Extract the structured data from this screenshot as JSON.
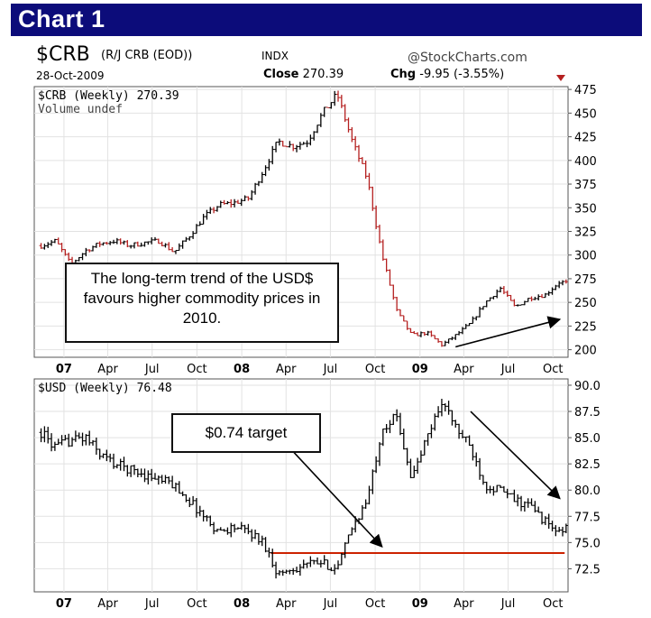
{
  "banner": {
    "title": "Chart 1",
    "color": "#0c0c7a"
  },
  "header": {
    "symbol": "$CRB",
    "description": "(R/J CRB (EOD))",
    "market": "INDX",
    "brand": "@StockCharts.com",
    "date": "28-Oct-2009",
    "close_label": "Close",
    "close_value": "270.39",
    "chg_label": "Chg",
    "chg_value": "-9.95 (-3.55%)"
  },
  "top_panel": {
    "label": "$CRB (Weekly) 270.39",
    "volume_label": "Volume undef",
    "annotation": "The long-term trend of the USD$ favours higher commodity prices in 2010."
  },
  "bottom_panel": {
    "label": "$USD (Weekly) 76.48",
    "annotation": "$0.74 target"
  },
  "x_axis_labels": [
    "07",
    "Apr",
    "Jul",
    "Oct",
    "08",
    "Apr",
    "Jul",
    "Oct",
    "09",
    "Apr",
    "Jul",
    "Oct"
  ],
  "chart_data": [
    {
      "type": "line",
      "name": "$CRB (Weekly)",
      "y_ticks": [
        200,
        225,
        250,
        275,
        300,
        325,
        350,
        375,
        400,
        425,
        450,
        475
      ],
      "ylim": [
        192,
        478
      ],
      "x_range": [
        "2006-11-01",
        "2009-11-01"
      ],
      "x": [
        "2006-11",
        "2006-12",
        "2007-01",
        "2007-02",
        "2007-03",
        "2007-04",
        "2007-05",
        "2007-06",
        "2007-07",
        "2007-08",
        "2007-09",
        "2007-10",
        "2007-11",
        "2007-12",
        "2008-01",
        "2008-02",
        "2008-03",
        "2008-04",
        "2008-05",
        "2008-06",
        "2008-07",
        "2008-08",
        "2008-09",
        "2008-10",
        "2008-11",
        "2008-12",
        "2009-01",
        "2009-02",
        "2009-03",
        "2009-04",
        "2009-05",
        "2009-06",
        "2009-07",
        "2009-08",
        "2009-09",
        "2009-10",
        "2009-10-28"
      ],
      "values": [
        310,
        315,
        290,
        305,
        312,
        315,
        310,
        313,
        315,
        303,
        320,
        340,
        353,
        355,
        360,
        390,
        420,
        415,
        420,
        450,
        470,
        420,
        380,
        300,
        240,
        215,
        218,
        205,
        215,
        228,
        250,
        265,
        245,
        255,
        258,
        272,
        270.39
      ],
      "series_colors": {
        "up": "#000000",
        "down": "#b52020"
      },
      "arrows": [
        {
          "from": [
            "2009-03",
            203
          ],
          "to": [
            "2009-10",
            232
          ]
        }
      ]
    },
    {
      "type": "line",
      "name": "$USD (Weekly)",
      "y_ticks": [
        72.5,
        75.0,
        77.5,
        80.0,
        82.5,
        85.0,
        87.5,
        90.0
      ],
      "ylim": [
        70.3,
        90.6
      ],
      "x_range": [
        "2006-11-01",
        "2009-11-01"
      ],
      "x": [
        "2006-11",
        "2006-12",
        "2007-01",
        "2007-02",
        "2007-03",
        "2007-04",
        "2007-05",
        "2007-06",
        "2007-07",
        "2007-08",
        "2007-09",
        "2007-10",
        "2007-11",
        "2007-12",
        "2008-01",
        "2008-02",
        "2008-03",
        "2008-04",
        "2008-05",
        "2008-06",
        "2008-07",
        "2008-08",
        "2008-09",
        "2008-10",
        "2008-11",
        "2008-12",
        "2009-01",
        "2009-02",
        "2009-03",
        "2009-04",
        "2009-05",
        "2009-06",
        "2009-07",
        "2009-08",
        "2009-09",
        "2009-10",
        "2009-10-28"
      ],
      "values": [
        85.5,
        84.0,
        84.8,
        85.0,
        83.5,
        82.5,
        82.0,
        81.5,
        81.0,
        80.5,
        79.0,
        77.5,
        76.0,
        76.5,
        76.0,
        75.0,
        72.0,
        72.5,
        73.0,
        73.0,
        72.5,
        76.5,
        79.0,
        86.0,
        87.0,
        81.0,
        85.0,
        88.5,
        86.0,
        84.0,
        80.5,
        80.0,
        79.0,
        78.5,
        77.0,
        75.8,
        76.48
      ],
      "target_level": 74.0,
      "target_color": "#cc2200",
      "arrows": [
        {
          "from": [
            "2008-04",
            83.7
          ],
          "to": [
            "2008-10",
            74.6
          ]
        },
        {
          "from": [
            "2009-04",
            87.5
          ],
          "to": [
            "2009-10",
            79.2
          ]
        }
      ]
    }
  ]
}
